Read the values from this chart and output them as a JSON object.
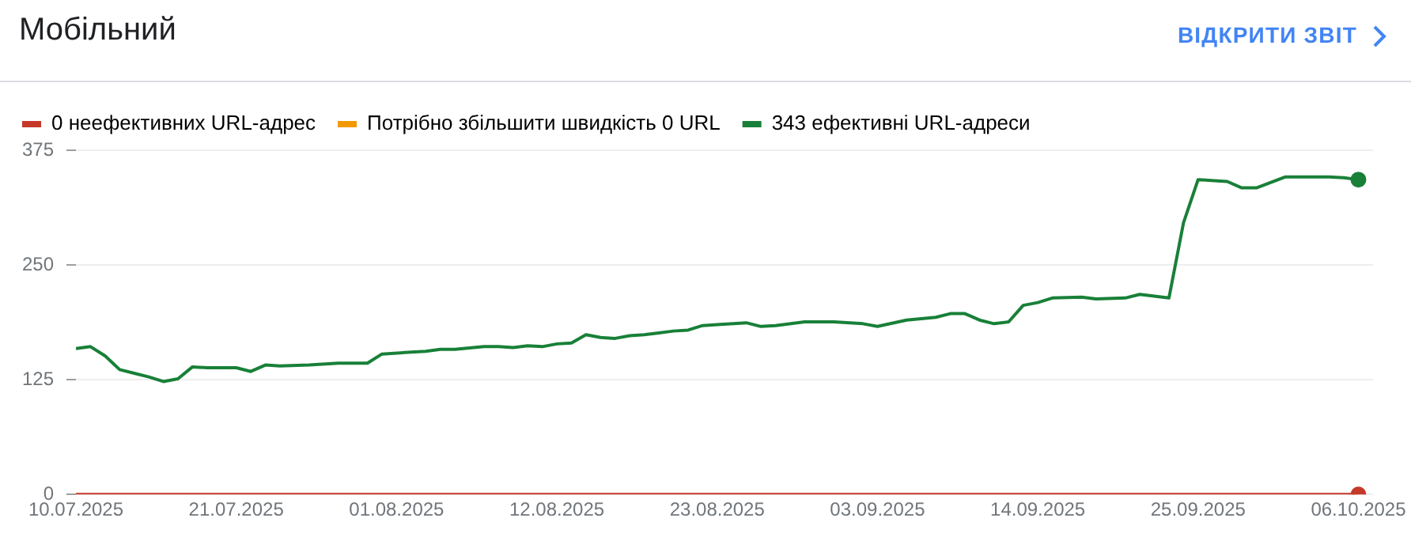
{
  "chart_data": {
    "type": "line",
    "title": "Мобільний",
    "annotations": [
      "ВІДКРИТИ ЗВІТ"
    ],
    "legend": "top left",
    "grid": "y",
    "xlim": [
      "2025-07-10",
      "2025-10-07"
    ],
    "xticks": [
      {
        "value": "2025-07-10",
        "label": "10.07.2025"
      },
      {
        "value": "2025-07-21",
        "label": "21.07.2025"
      },
      {
        "value": "2025-08-01",
        "label": "01.08.2025"
      },
      {
        "value": "2025-08-12",
        "label": "12.08.2025"
      },
      {
        "value": "2025-08-23",
        "label": "23.08.2025"
      },
      {
        "value": "2025-09-03",
        "label": "03.09.2025"
      },
      {
        "value": "2025-09-14",
        "label": "14.09.2025"
      },
      {
        "value": "2025-09-25",
        "label": "25.09.2025"
      },
      {
        "value": "2025-10-06",
        "label": "06.10.2025"
      }
    ],
    "ylim": [
      0,
      375
    ],
    "yticks": [
      0,
      125,
      250,
      375
    ],
    "series": [
      {
        "name": "0 неефективних URL-адрес",
        "color": "#c5392a",
        "x": [
          "2025-07-10",
          "2025-10-06"
        ],
        "values": [
          0,
          0
        ]
      },
      {
        "name": "Потрібно збільшити швидкість 0 URL",
        "color": "#f29900",
        "values": [
          null
        ]
      },
      {
        "name": "343 ефективні URL-адреси",
        "color": "#188038",
        "x": [
          "2025-07-10",
          "2025-07-11",
          "2025-07-12",
          "2025-07-13",
          "2025-07-14",
          "2025-07-15",
          "2025-07-16",
          "2025-07-17",
          "2025-07-18",
          "2025-07-19",
          "2025-07-21",
          "2025-07-22",
          "2025-07-23",
          "2025-07-24",
          "2025-07-26",
          "2025-07-28",
          "2025-07-30",
          "2025-07-31",
          "2025-08-02",
          "2025-08-03",
          "2025-08-04",
          "2025-08-05",
          "2025-08-07",
          "2025-08-08",
          "2025-08-09",
          "2025-08-10",
          "2025-08-11",
          "2025-08-12",
          "2025-08-13",
          "2025-08-14",
          "2025-08-15",
          "2025-08-16",
          "2025-08-17",
          "2025-08-18",
          "2025-08-19",
          "2025-08-20",
          "2025-08-21",
          "2025-08-22",
          "2025-08-23",
          "2025-08-25",
          "2025-08-26",
          "2025-08-27",
          "2025-08-29",
          "2025-08-31",
          "2025-09-02",
          "2025-09-03",
          "2025-09-05",
          "2025-09-07",
          "2025-09-08",
          "2025-09-09",
          "2025-09-10",
          "2025-09-11",
          "2025-09-12",
          "2025-09-13",
          "2025-09-14",
          "2025-09-15",
          "2025-09-17",
          "2025-09-18",
          "2025-09-20",
          "2025-09-21",
          "2025-09-22",
          "2025-09-23",
          "2025-09-24",
          "2025-09-25",
          "2025-09-27",
          "2025-09-28",
          "2025-09-29",
          "2025-10-01",
          "2025-10-03",
          "2025-10-04",
          "2025-10-05",
          "2025-10-06"
        ],
        "values": [
          159,
          161,
          151,
          136,
          132,
          128,
          123,
          126,
          139,
          138,
          138,
          134,
          141,
          140,
          141,
          143,
          143,
          153,
          155,
          156,
          158,
          158,
          161,
          161,
          160,
          162,
          161,
          164,
          165,
          174,
          171,
          170,
          173,
          174,
          176,
          178,
          179,
          184,
          185,
          187,
          183,
          184,
          188,
          188,
          186,
          183,
          190,
          193,
          197,
          197,
          190,
          186,
          188,
          206,
          209,
          214,
          215,
          213,
          214,
          218,
          216,
          214,
          296,
          343,
          341,
          334,
          334,
          346,
          346,
          346,
          345,
          343
        ]
      }
    ]
  }
}
